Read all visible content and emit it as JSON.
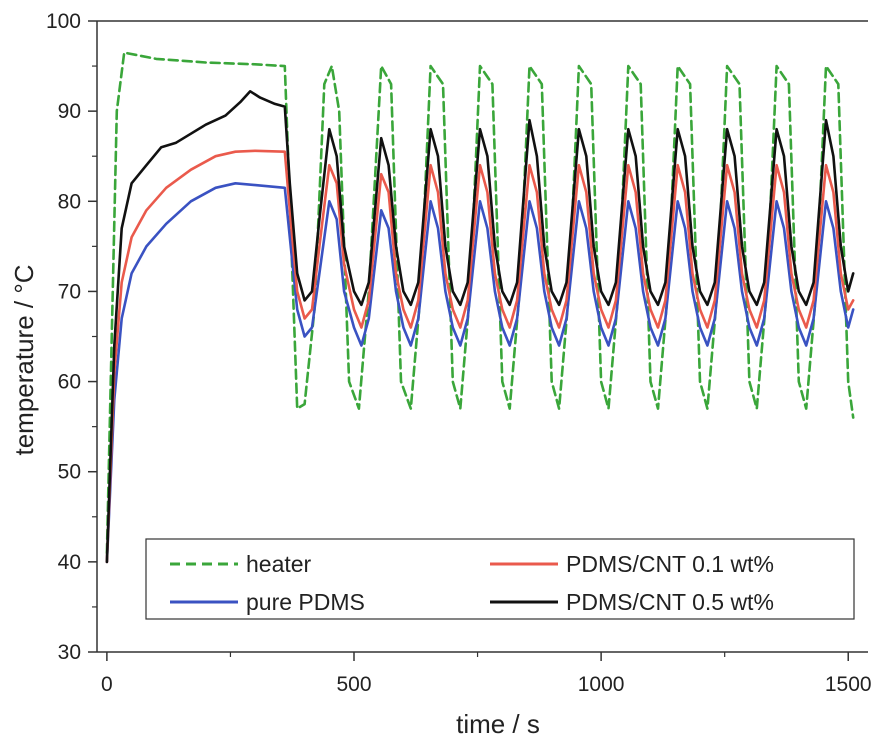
{
  "chart_data": {
    "type": "line",
    "xlabel": "time / s",
    "ylabel": "temperature / °C",
    "xlim": [
      -20,
      1540
    ],
    "ylim": [
      30,
      100
    ],
    "x_ticks": [
      0,
      500,
      1000,
      1500
    ],
    "y_ticks": [
      30,
      40,
      50,
      60,
      70,
      80,
      90,
      100
    ],
    "grid": false,
    "legend_position": "bottom",
    "series": [
      {
        "name": "heater",
        "color": "#3aa63a",
        "style": "dashed",
        "points": [
          [
            0,
            41
          ],
          [
            20,
            90
          ],
          [
            35,
            96.5
          ],
          [
            100,
            95.8
          ],
          [
            200,
            95.4
          ],
          [
            300,
            95.2
          ],
          [
            360,
            95
          ],
          [
            370,
            80
          ],
          [
            385,
            57
          ],
          [
            400,
            57.5
          ],
          [
            420,
            68
          ],
          [
            440,
            93
          ],
          [
            455,
            95
          ],
          [
            470,
            90
          ],
          [
            490,
            60
          ],
          [
            510,
            57
          ],
          [
            530,
            70
          ],
          [
            555,
            95
          ],
          [
            575,
            93
          ],
          [
            595,
            60
          ],
          [
            615,
            57
          ],
          [
            635,
            70
          ],
          [
            655,
            95
          ],
          [
            680,
            93
          ],
          [
            700,
            60
          ],
          [
            715,
            57
          ],
          [
            735,
            70
          ],
          [
            755,
            95
          ],
          [
            780,
            93
          ],
          [
            800,
            60
          ],
          [
            815,
            57
          ],
          [
            835,
            70
          ],
          [
            855,
            95
          ],
          [
            880,
            93
          ],
          [
            900,
            60
          ],
          [
            915,
            57
          ],
          [
            935,
            70
          ],
          [
            955,
            95
          ],
          [
            980,
            93
          ],
          [
            1000,
            60
          ],
          [
            1015,
            57
          ],
          [
            1035,
            70
          ],
          [
            1055,
            95
          ],
          [
            1080,
            93
          ],
          [
            1100,
            60
          ],
          [
            1115,
            57
          ],
          [
            1135,
            70
          ],
          [
            1155,
            95
          ],
          [
            1180,
            93
          ],
          [
            1200,
            60
          ],
          [
            1215,
            57
          ],
          [
            1235,
            70
          ],
          [
            1255,
            95
          ],
          [
            1280,
            93
          ],
          [
            1300,
            60
          ],
          [
            1315,
            57
          ],
          [
            1335,
            70
          ],
          [
            1355,
            95
          ],
          [
            1380,
            93
          ],
          [
            1400,
            60
          ],
          [
            1415,
            57
          ],
          [
            1435,
            70
          ],
          [
            1455,
            95
          ],
          [
            1480,
            93
          ],
          [
            1500,
            60
          ],
          [
            1510,
            56
          ]
        ]
      },
      {
        "name": "pure PDMS",
        "color": "#3a52c2",
        "style": "solid",
        "points": [
          [
            0,
            40
          ],
          [
            15,
            58
          ],
          [
            30,
            67
          ],
          [
            50,
            72
          ],
          [
            80,
            75
          ],
          [
            120,
            77.5
          ],
          [
            170,
            80
          ],
          [
            220,
            81.5
          ],
          [
            260,
            82
          ],
          [
            300,
            81.8
          ],
          [
            360,
            81.5
          ],
          [
            370,
            76
          ],
          [
            385,
            68
          ],
          [
            400,
            65
          ],
          [
            415,
            66
          ],
          [
            430,
            72
          ],
          [
            450,
            80
          ],
          [
            465,
            78
          ],
          [
            480,
            70
          ],
          [
            500,
            66
          ],
          [
            515,
            64
          ],
          [
            530,
            67
          ],
          [
            555,
            79
          ],
          [
            570,
            77
          ],
          [
            585,
            70
          ],
          [
            600,
            66
          ],
          [
            615,
            64
          ],
          [
            630,
            67
          ],
          [
            655,
            80
          ],
          [
            670,
            77
          ],
          [
            685,
            70
          ],
          [
            700,
            66
          ],
          [
            715,
            64
          ],
          [
            730,
            67
          ],
          [
            755,
            80
          ],
          [
            770,
            77
          ],
          [
            785,
            70
          ],
          [
            800,
            66
          ],
          [
            815,
            64
          ],
          [
            830,
            67
          ],
          [
            855,
            80
          ],
          [
            870,
            77
          ],
          [
            885,
            70
          ],
          [
            900,
            66
          ],
          [
            915,
            64
          ],
          [
            930,
            67
          ],
          [
            955,
            80
          ],
          [
            970,
            77
          ],
          [
            985,
            70
          ],
          [
            1000,
            66
          ],
          [
            1015,
            64
          ],
          [
            1030,
            67
          ],
          [
            1055,
            80
          ],
          [
            1070,
            77
          ],
          [
            1085,
            70
          ],
          [
            1100,
            66
          ],
          [
            1115,
            64
          ],
          [
            1130,
            67
          ],
          [
            1155,
            80
          ],
          [
            1170,
            77
          ],
          [
            1185,
            70
          ],
          [
            1200,
            66
          ],
          [
            1215,
            64
          ],
          [
            1230,
            67
          ],
          [
            1255,
            80
          ],
          [
            1270,
            77
          ],
          [
            1285,
            70
          ],
          [
            1300,
            66
          ],
          [
            1315,
            64
          ],
          [
            1330,
            67
          ],
          [
            1355,
            80
          ],
          [
            1370,
            77
          ],
          [
            1385,
            70
          ],
          [
            1400,
            66
          ],
          [
            1415,
            64
          ],
          [
            1430,
            67
          ],
          [
            1455,
            80
          ],
          [
            1470,
            77
          ],
          [
            1485,
            70
          ],
          [
            1500,
            66
          ],
          [
            1510,
            68
          ]
        ]
      },
      {
        "name": "PDMS/CNT 0.1 wt%",
        "color": "#ea5a4c",
        "style": "solid",
        "points": [
          [
            0,
            40
          ],
          [
            15,
            61
          ],
          [
            30,
            71
          ],
          [
            50,
            76
          ],
          [
            80,
            79
          ],
          [
            120,
            81.5
          ],
          [
            170,
            83.5
          ],
          [
            220,
            85
          ],
          [
            260,
            85.5
          ],
          [
            300,
            85.6
          ],
          [
            360,
            85.5
          ],
          [
            370,
            79
          ],
          [
            385,
            70
          ],
          [
            400,
            67
          ],
          [
            415,
            68
          ],
          [
            430,
            75
          ],
          [
            450,
            84
          ],
          [
            465,
            82
          ],
          [
            480,
            73
          ],
          [
            500,
            68
          ],
          [
            515,
            66
          ],
          [
            530,
            69
          ],
          [
            555,
            83
          ],
          [
            570,
            81
          ],
          [
            585,
            72
          ],
          [
            600,
            68
          ],
          [
            615,
            66
          ],
          [
            630,
            69
          ],
          [
            655,
            84
          ],
          [
            670,
            81
          ],
          [
            685,
            72
          ],
          [
            700,
            68
          ],
          [
            715,
            66
          ],
          [
            730,
            69
          ],
          [
            755,
            84
          ],
          [
            770,
            81
          ],
          [
            785,
            72
          ],
          [
            800,
            68
          ],
          [
            815,
            66
          ],
          [
            830,
            69
          ],
          [
            855,
            84
          ],
          [
            870,
            81
          ],
          [
            885,
            72
          ],
          [
            900,
            68
          ],
          [
            915,
            66
          ],
          [
            930,
            69
          ],
          [
            955,
            84
          ],
          [
            970,
            81
          ],
          [
            985,
            72
          ],
          [
            1000,
            68
          ],
          [
            1015,
            66
          ],
          [
            1030,
            69
          ],
          [
            1055,
            84
          ],
          [
            1070,
            81
          ],
          [
            1085,
            72
          ],
          [
            1100,
            68
          ],
          [
            1115,
            66
          ],
          [
            1130,
            69
          ],
          [
            1155,
            84
          ],
          [
            1170,
            81
          ],
          [
            1185,
            72
          ],
          [
            1200,
            68
          ],
          [
            1215,
            66
          ],
          [
            1230,
            69
          ],
          [
            1255,
            84
          ],
          [
            1270,
            81
          ],
          [
            1285,
            72
          ],
          [
            1300,
            68
          ],
          [
            1315,
            66
          ],
          [
            1330,
            69
          ],
          [
            1355,
            84
          ],
          [
            1370,
            81
          ],
          [
            1385,
            72
          ],
          [
            1400,
            68
          ],
          [
            1415,
            66
          ],
          [
            1430,
            69
          ],
          [
            1455,
            84
          ],
          [
            1470,
            81
          ],
          [
            1485,
            72
          ],
          [
            1500,
            68
          ],
          [
            1510,
            69
          ]
        ]
      },
      {
        "name": "PDMS/CNT 0.5 wt%",
        "color": "#111111",
        "style": "solid",
        "points": [
          [
            0,
            40
          ],
          [
            15,
            64
          ],
          [
            30,
            77
          ],
          [
            50,
            82
          ],
          [
            80,
            84
          ],
          [
            110,
            86
          ],
          [
            140,
            86.5
          ],
          [
            170,
            87.5
          ],
          [
            200,
            88.5
          ],
          [
            240,
            89.5
          ],
          [
            270,
            91
          ],
          [
            290,
            92.2
          ],
          [
            310,
            91.5
          ],
          [
            340,
            90.8
          ],
          [
            360,
            90.5
          ],
          [
            370,
            82
          ],
          [
            385,
            72
          ],
          [
            400,
            69
          ],
          [
            415,
            70
          ],
          [
            430,
            78
          ],
          [
            450,
            88
          ],
          [
            465,
            85
          ],
          [
            480,
            75
          ],
          [
            500,
            70
          ],
          [
            515,
            68.5
          ],
          [
            530,
            71
          ],
          [
            555,
            87
          ],
          [
            570,
            84
          ],
          [
            585,
            75
          ],
          [
            600,
            70
          ],
          [
            615,
            68.5
          ],
          [
            630,
            71
          ],
          [
            655,
            88
          ],
          [
            670,
            85
          ],
          [
            685,
            75
          ],
          [
            700,
            70
          ],
          [
            715,
            68.5
          ],
          [
            730,
            71
          ],
          [
            755,
            88
          ],
          [
            770,
            85
          ],
          [
            785,
            75
          ],
          [
            800,
            70
          ],
          [
            815,
            68.5
          ],
          [
            830,
            71
          ],
          [
            855,
            89
          ],
          [
            870,
            85
          ],
          [
            885,
            75
          ],
          [
            900,
            70
          ],
          [
            915,
            68.5
          ],
          [
            930,
            71
          ],
          [
            955,
            88
          ],
          [
            970,
            85
          ],
          [
            985,
            75
          ],
          [
            1000,
            70
          ],
          [
            1015,
            68.5
          ],
          [
            1030,
            71
          ],
          [
            1055,
            88
          ],
          [
            1070,
            85
          ],
          [
            1085,
            75
          ],
          [
            1100,
            70
          ],
          [
            1115,
            68.5
          ],
          [
            1130,
            71
          ],
          [
            1155,
            88
          ],
          [
            1170,
            85
          ],
          [
            1185,
            75
          ],
          [
            1200,
            70
          ],
          [
            1215,
            68.5
          ],
          [
            1230,
            71
          ],
          [
            1255,
            88
          ],
          [
            1270,
            85
          ],
          [
            1285,
            75
          ],
          [
            1300,
            70
          ],
          [
            1315,
            68.5
          ],
          [
            1330,
            71
          ],
          [
            1355,
            88
          ],
          [
            1370,
            85
          ],
          [
            1385,
            75
          ],
          [
            1400,
            70
          ],
          [
            1415,
            68.5
          ],
          [
            1430,
            71
          ],
          [
            1455,
            89
          ],
          [
            1470,
            85
          ],
          [
            1485,
            75
          ],
          [
            1500,
            70
          ],
          [
            1510,
            72
          ]
        ]
      }
    ]
  }
}
